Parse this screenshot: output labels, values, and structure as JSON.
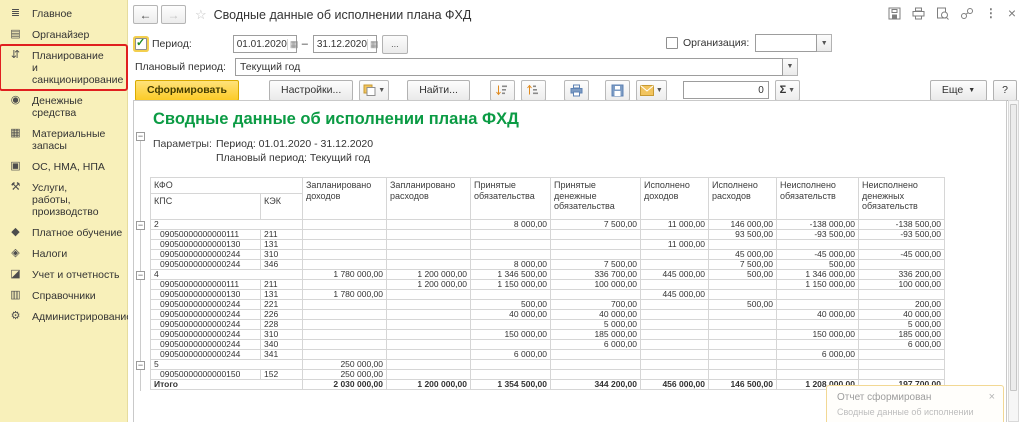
{
  "sidebar": {
    "items": [
      {
        "name": "main",
        "icon": "home-menu-icon",
        "label": "Главное"
      },
      {
        "name": "organizer",
        "icon": "organizer-icon",
        "label": "Органайзер"
      },
      {
        "name": "planning",
        "icon": "planning-icon",
        "label": "Планирование\nи санкционирование",
        "highlighted": true
      },
      {
        "name": "cash",
        "icon": "money-icon",
        "label": "Денежные средства"
      },
      {
        "name": "inventory",
        "icon": "inventory-icon",
        "label": "Материальные запасы"
      },
      {
        "name": "assets",
        "icon": "assets-icon",
        "label": "ОС, НМА, НПА"
      },
      {
        "name": "services",
        "icon": "services-icon",
        "label": "Услуги,\nработы, производство"
      },
      {
        "name": "paid-education",
        "icon": "education-icon",
        "label": "Платное обучение"
      },
      {
        "name": "taxes",
        "icon": "taxes-icon",
        "label": "Налоги"
      },
      {
        "name": "accounting",
        "icon": "accounting-icon",
        "label": "Учет и отчетность"
      },
      {
        "name": "catalogs",
        "icon": "catalogs-icon",
        "label": "Справочники"
      },
      {
        "name": "administration",
        "icon": "administration-icon",
        "label": "Администрирование"
      }
    ]
  },
  "titlebar": {
    "title": "Сводные данные об исполнении плана ФХД",
    "back": "←",
    "forward": "→",
    "star": "☆"
  },
  "filters": {
    "period_label": "Период:",
    "period_checked": true,
    "period_from": "01.01.2020",
    "period_dash": "–",
    "period_to": "31.12.2020",
    "period_more": "...",
    "org_label": "Организация:",
    "org_checked": false,
    "org_value": "",
    "plan_label": "Плановый период:",
    "plan_value": "Текущий год"
  },
  "toolbar": {
    "generate": "Сформировать",
    "settings": "Настройки...",
    "find": "Найти...",
    "counter": "0",
    "sigma": "Σ",
    "more": "Еще",
    "help": "?"
  },
  "report": {
    "title": "Сводные данные об исполнении плана ФХД",
    "params_label": "Параметры:",
    "param_lines": [
      "Период: 01.01.2020 - 31.12.2020",
      "Плановый период: Текущий год"
    ]
  },
  "table": {
    "header": {
      "kfo": "КФО",
      "kps": "КПС",
      "kek": "КЭК",
      "columns": [
        "Запланировано доходов",
        "Запланировано расходов",
        "Принятые обязательства",
        "Принятые денежные обязательства",
        "Исполнено доходов",
        "Исполнено расходов",
        "Неисполнено обязательств",
        "Неисполнено денежных обязательств"
      ]
    },
    "rows": [
      {
        "type": "group",
        "label": "2",
        "values": [
          "",
          "",
          "8 000,00",
          "7 500,00",
          "11 000,00",
          "146 000,00",
          "-138 000,00",
          "-138 500,00"
        ],
        "red": [
          6,
          7
        ],
        "underline": true
      },
      {
        "type": "detail",
        "kps": "09050000000000111",
        "kek": "211",
        "values": [
          "",
          "",
          "",
          "",
          "",
          "93 500,00",
          "-93 500,00",
          "-93 500,00"
        ],
        "red": [
          6,
          7
        ],
        "underline": true
      },
      {
        "type": "detail",
        "kps": "09050000000000130",
        "kek": "131",
        "values": [
          "",
          "",
          "",
          "",
          "11 000,00",
          "",
          "",
          ""
        ],
        "red": [],
        "underline": false
      },
      {
        "type": "detail",
        "kps": "09050000000000244",
        "kek": "310",
        "values": [
          "",
          "",
          "",
          "",
          "",
          "45 000,00",
          "-45 000,00",
          "-45 000,00"
        ],
        "red": [
          6,
          7
        ],
        "underline": true
      },
      {
        "type": "detail",
        "kps": "09050000000000244",
        "kek": "346",
        "values": [
          "",
          "",
          "8 000,00",
          "7 500,00",
          "",
          "7 500,00",
          "500,00",
          ""
        ],
        "red": [],
        "underline": false
      },
      {
        "type": "group",
        "label": "4",
        "values": [
          "1 780 000,00",
          "1 200 000,00",
          "1 346 500,00",
          "336 700,00",
          "445 000,00",
          "500,00",
          "1 346 000,00",
          "336 200,00"
        ],
        "red": [],
        "underline": false
      },
      {
        "type": "detail",
        "kps": "09050000000000111",
        "kek": "211",
        "values": [
          "",
          "1 200 000,00",
          "1 150 000,00",
          "100 000,00",
          "",
          "",
          "1 150 000,00",
          "100 000,00"
        ],
        "red": [],
        "underline": false
      },
      {
        "type": "detail",
        "kps": "09050000000000130",
        "kek": "131",
        "values": [
          "1 780 000,00",
          "",
          "",
          "",
          "445 000,00",
          "",
          "",
          ""
        ],
        "red": [],
        "underline": false
      },
      {
        "type": "detail",
        "kps": "09050000000000244",
        "kek": "221",
        "values": [
          "",
          "",
          "500,00",
          "700,00",
          "",
          "500,00",
          "",
          "200,00"
        ],
        "red": [],
        "underline": false
      },
      {
        "type": "detail",
        "kps": "09050000000000244",
        "kek": "226",
        "values": [
          "",
          "",
          "40 000,00",
          "40 000,00",
          "",
          "",
          "40 000,00",
          "40 000,00"
        ],
        "red": [],
        "underline": false
      },
      {
        "type": "detail",
        "kps": "09050000000000244",
        "kek": "228",
        "values": [
          "",
          "",
          "",
          "5 000,00",
          "",
          "",
          "",
          "5 000,00"
        ],
        "red": [],
        "underline": false
      },
      {
        "type": "detail",
        "kps": "09050000000000244",
        "kek": "310",
        "values": [
          "",
          "",
          "150 000,00",
          "185 000,00",
          "",
          "",
          "150 000,00",
          "185 000,00"
        ],
        "red": [],
        "underline": false
      },
      {
        "type": "detail",
        "kps": "09050000000000244",
        "kek": "340",
        "values": [
          "",
          "",
          "",
          "6 000,00",
          "",
          "",
          "",
          "6 000,00"
        ],
        "red": [],
        "underline": false
      },
      {
        "type": "detail",
        "kps": "09050000000000244",
        "kek": "341",
        "values": [
          "",
          "",
          "6 000,00",
          "",
          "",
          "",
          "6 000,00",
          ""
        ],
        "red": [],
        "underline": false
      },
      {
        "type": "group",
        "label": "5",
        "values": [
          "250 000,00",
          "",
          "",
          "",
          "",
          "",
          "",
          ""
        ],
        "red": [],
        "underline": false
      },
      {
        "type": "detail",
        "kps": "09050000000000150",
        "kek": "152",
        "values": [
          "250 000,00",
          "",
          "",
          "",
          "",
          "",
          "",
          ""
        ],
        "red": [],
        "underline": false
      }
    ],
    "total_label": "Итого",
    "total_values": [
      "2 030 000,00",
      "1 200 000,00",
      "1 354 500,00",
      "344 200,00",
      "456 000,00",
      "146 500,00",
      "1 208 000,00",
      "197 700,00"
    ]
  },
  "toast": {
    "title": "Отчет сформирован",
    "subtitle": "Сводные данные об исполнении"
  },
  "colors": {
    "accent_yellow": "#fccb27",
    "sidebar_bg": "#f8f0ba",
    "highlight_red": "#e01f1f",
    "report_green": "#0b9b44",
    "negative_red": "#e00000"
  }
}
